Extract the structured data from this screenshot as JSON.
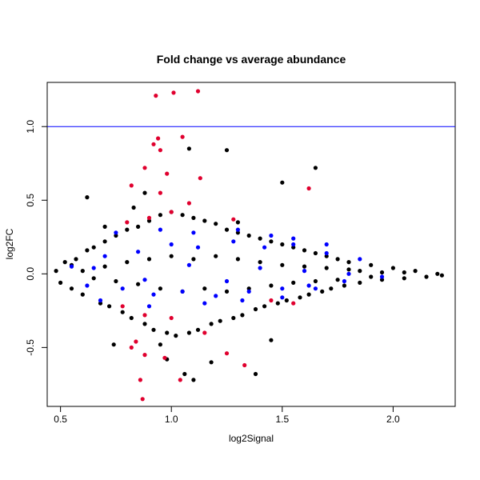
{
  "chart_data": {
    "type": "scatter",
    "title": "Fold change vs average abundance",
    "xlabel": "log2Signal",
    "ylabel": "log2FC",
    "xlim": [
      0.44,
      2.28
    ],
    "ylim": [
      -0.9,
      1.3
    ],
    "x_ticks": [
      0.5,
      1.0,
      1.5,
      2.0
    ],
    "y_ticks": [
      -0.5,
      0.0,
      0.5,
      1.0
    ],
    "x_tick_labels": [
      "0.5",
      "1.0",
      "1.5",
      "2.0"
    ],
    "y_tick_labels": [
      "-0.5",
      "0.0",
      "0.5",
      "1.0"
    ],
    "grid": false,
    "reference_lines": [
      {
        "axis": "y",
        "value": 1.0,
        "color": "#0000ff"
      }
    ],
    "colors": {
      "black": "#000000",
      "blue": "#0000ff",
      "red": "#e0002e"
    },
    "series": [
      {
        "color": "#000000",
        "points": [
          [
            0.48,
            0.02
          ],
          [
            0.5,
            -0.06
          ],
          [
            0.52,
            0.08
          ],
          [
            0.55,
            -0.1
          ],
          [
            0.57,
            0.1
          ],
          [
            0.6,
            -0.14
          ],
          [
            0.62,
            0.16
          ],
          [
            0.65,
            0.18
          ],
          [
            0.68,
            -0.2
          ],
          [
            0.7,
            0.22
          ],
          [
            0.72,
            -0.22
          ],
          [
            0.75,
            0.26
          ],
          [
            0.78,
            -0.26
          ],
          [
            0.8,
            0.3
          ],
          [
            0.82,
            -0.3
          ],
          [
            0.85,
            0.32
          ],
          [
            0.88,
            -0.34
          ],
          [
            0.9,
            0.36
          ],
          [
            0.92,
            -0.38
          ],
          [
            0.95,
            0.4
          ],
          [
            0.98,
            -0.4
          ],
          [
            1.0,
            0.42
          ],
          [
            1.02,
            -0.42
          ],
          [
            1.05,
            0.4
          ],
          [
            1.08,
            -0.4
          ],
          [
            1.1,
            0.38
          ],
          [
            1.12,
            -0.38
          ],
          [
            1.15,
            0.36
          ],
          [
            1.18,
            -0.34
          ],
          [
            1.2,
            0.34
          ],
          [
            1.22,
            -0.32
          ],
          [
            1.25,
            0.3
          ],
          [
            1.28,
            -0.3
          ],
          [
            1.3,
            0.28
          ],
          [
            1.32,
            -0.28
          ],
          [
            1.35,
            0.26
          ],
          [
            1.38,
            -0.24
          ],
          [
            1.4,
            0.24
          ],
          [
            1.42,
            -0.22
          ],
          [
            1.45,
            0.22
          ],
          [
            1.48,
            -0.2
          ],
          [
            1.5,
            0.2
          ],
          [
            1.52,
            -0.18
          ],
          [
            1.55,
            0.18
          ],
          [
            1.58,
            -0.16
          ],
          [
            1.6,
            0.16
          ],
          [
            1.62,
            -0.14
          ],
          [
            1.65,
            0.14
          ],
          [
            1.68,
            -0.12
          ],
          [
            1.7,
            0.12
          ],
          [
            1.72,
            -0.1
          ],
          [
            1.75,
            0.1
          ],
          [
            1.78,
            -0.08
          ],
          [
            1.8,
            0.08
          ],
          [
            1.85,
            -0.06
          ],
          [
            1.9,
            0.06
          ],
          [
            1.95,
            -0.04
          ],
          [
            2.0,
            0.04
          ],
          [
            2.05,
            -0.03
          ],
          [
            2.1,
            0.02
          ],
          [
            2.15,
            -0.02
          ],
          [
            2.2,
            0.0
          ],
          [
            2.22,
            -0.01
          ],
          [
            0.62,
            0.52
          ],
          [
            0.83,
            0.45
          ],
          [
            1.25,
            0.84
          ],
          [
            1.5,
            0.62
          ],
          [
            1.65,
            0.72
          ],
          [
            0.88,
            0.55
          ],
          [
            1.08,
            0.85
          ],
          [
            1.06,
            -0.68
          ],
          [
            1.1,
            -0.72
          ],
          [
            1.38,
            -0.68
          ],
          [
            0.98,
            -0.58
          ],
          [
            0.74,
            -0.48
          ],
          [
            1.18,
            -0.6
          ],
          [
            1.45,
            -0.45
          ],
          [
            0.7,
            0.32
          ],
          [
            1.3,
            0.35
          ],
          [
            0.95,
            -0.48
          ],
          [
            0.55,
            0.06
          ],
          [
            0.6,
            0.02
          ],
          [
            0.65,
            -0.03
          ],
          [
            0.7,
            0.05
          ],
          [
            0.75,
            -0.05
          ],
          [
            0.8,
            0.08
          ],
          [
            0.85,
            -0.07
          ],
          [
            0.9,
            0.1
          ],
          [
            0.95,
            -0.1
          ],
          [
            1.0,
            0.12
          ],
          [
            1.05,
            -0.12
          ],
          [
            1.1,
            0.1
          ],
          [
            1.15,
            -0.1
          ],
          [
            1.2,
            0.12
          ],
          [
            1.25,
            -0.12
          ],
          [
            1.3,
            0.1
          ],
          [
            1.35,
            -0.1
          ],
          [
            1.4,
            0.08
          ],
          [
            1.45,
            -0.08
          ],
          [
            1.5,
            0.06
          ],
          [
            1.55,
            -0.06
          ],
          [
            1.6,
            0.05
          ],
          [
            1.65,
            -0.05
          ],
          [
            1.7,
            0.04
          ],
          [
            1.75,
            -0.04
          ],
          [
            1.8,
            0.03
          ],
          [
            1.85,
            0.02
          ],
          [
            1.9,
            -0.02
          ],
          [
            1.95,
            0.01
          ],
          [
            2.05,
            0.01
          ]
        ]
      },
      {
        "color": "#0000ff",
        "points": [
          [
            0.55,
            0.05
          ],
          [
            0.62,
            -0.08
          ],
          [
            0.7,
            0.12
          ],
          [
            0.78,
            -0.1
          ],
          [
            0.85,
            0.15
          ],
          [
            0.92,
            -0.14
          ],
          [
            1.0,
            0.2
          ],
          [
            1.05,
            -0.12
          ],
          [
            1.12,
            0.18
          ],
          [
            1.2,
            -0.15
          ],
          [
            1.28,
            0.22
          ],
          [
            1.35,
            -0.12
          ],
          [
            1.42,
            0.18
          ],
          [
            1.5,
            -0.1
          ],
          [
            1.55,
            0.2
          ],
          [
            1.62,
            -0.08
          ],
          [
            1.7,
            0.14
          ],
          [
            1.78,
            -0.05
          ],
          [
            1.85,
            0.1
          ],
          [
            1.95,
            -0.02
          ],
          [
            0.75,
            0.28
          ],
          [
            0.95,
            0.3
          ],
          [
            1.1,
            0.28
          ],
          [
            1.3,
            0.3
          ],
          [
            1.45,
            0.26
          ],
          [
            1.55,
            0.24
          ],
          [
            1.7,
            0.2
          ],
          [
            0.68,
            -0.18
          ],
          [
            0.9,
            -0.22
          ],
          [
            1.15,
            -0.2
          ],
          [
            1.32,
            -0.18
          ],
          [
            1.5,
            -0.16
          ],
          [
            1.65,
            -0.1
          ],
          [
            0.65,
            0.04
          ],
          [
            0.88,
            -0.04
          ],
          [
            1.08,
            0.06
          ],
          [
            1.25,
            -0.05
          ],
          [
            1.4,
            0.04
          ],
          [
            1.6,
            0.02
          ],
          [
            1.8,
            0.0
          ]
        ]
      },
      {
        "color": "#e0002e",
        "points": [
          [
            0.93,
            1.21
          ],
          [
            1.01,
            1.23
          ],
          [
            1.12,
            1.24
          ],
          [
            0.94,
            0.92
          ],
          [
            1.05,
            0.93
          ],
          [
            0.92,
            0.88
          ],
          [
            0.95,
            0.84
          ],
          [
            0.88,
            0.72
          ],
          [
            0.98,
            0.68
          ],
          [
            1.13,
            0.65
          ],
          [
            1.62,
            0.58
          ],
          [
            0.82,
            0.6
          ],
          [
            0.95,
            0.55
          ],
          [
            1.08,
            0.48
          ],
          [
            0.8,
            0.35
          ],
          [
            0.9,
            0.38
          ],
          [
            1.0,
            0.42
          ],
          [
            1.28,
            0.37
          ],
          [
            0.78,
            -0.22
          ],
          [
            0.88,
            -0.28
          ],
          [
            1.0,
            -0.3
          ],
          [
            1.15,
            -0.4
          ],
          [
            1.25,
            -0.54
          ],
          [
            1.33,
            -0.62
          ],
          [
            0.82,
            -0.5
          ],
          [
            0.88,
            -0.55
          ],
          [
            0.86,
            -0.72
          ],
          [
            0.87,
            -0.85
          ],
          [
            0.97,
            -0.57
          ],
          [
            1.04,
            -0.72
          ],
          [
            0.84,
            -0.46
          ],
          [
            1.45,
            -0.18
          ],
          [
            1.55,
            -0.2
          ]
        ]
      }
    ]
  }
}
